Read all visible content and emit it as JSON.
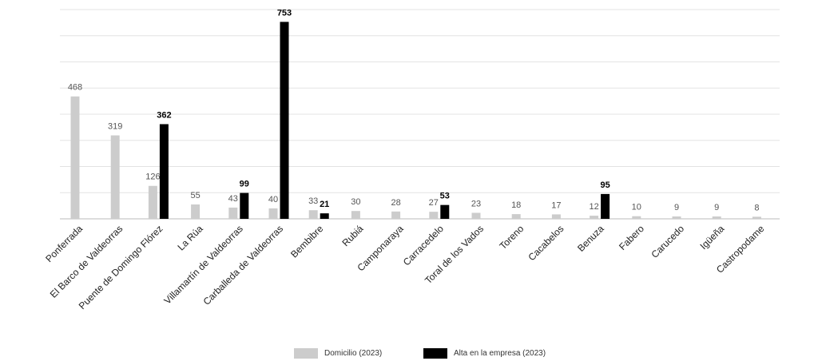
{
  "chart_data": {
    "type": "bar",
    "categories": [
      "Ponferrada",
      "El Barco de Valdeorras",
      "Puente de Domingo Flórez",
      "La Rúa",
      "Villamartín de Valdeorras",
      "Carballeda de Valdeorras",
      "Bembibre",
      "Rubiá",
      "Camponaraya",
      "Carracedelo",
      "Toral de los Vados",
      "Toreno",
      "Cacabelos",
      "Benuza",
      "Fabero",
      "Carucedo",
      "Igüeña",
      "Castropodame"
    ],
    "series": [
      {
        "name": "Domicilio (2023)",
        "color": "#cccccc",
        "values": [
          468,
          319,
          126,
          55,
          43,
          40,
          33,
          30,
          28,
          27,
          23,
          18,
          17,
          12,
          10,
          9,
          9,
          8
        ]
      },
      {
        "name": "Alta en la empresa (2023)",
        "color": "#000000",
        "values": [
          null,
          null,
          362,
          null,
          99,
          753,
          21,
          null,
          null,
          53,
          null,
          null,
          null,
          95,
          null,
          null,
          null,
          null
        ]
      }
    ],
    "ylim": [
      0,
      800
    ],
    "grid": true,
    "legend": "bottom-center"
  }
}
